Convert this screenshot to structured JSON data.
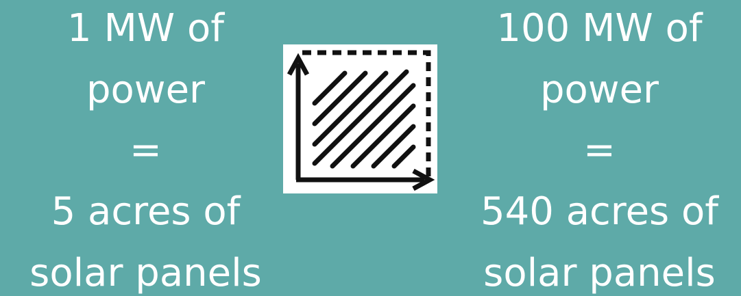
{
  "left": {
    "line1": "1 MW of",
    "line2": "power",
    "equals": "=",
    "line4": "5 acres of",
    "line5": "solar panels"
  },
  "right": {
    "line1": "100 MW of",
    "line2": "power",
    "equals": "=",
    "line4": "540 acres of",
    "line5": "solar panels"
  },
  "icon": {
    "name": "area-icon"
  },
  "colors": {
    "background": "#5eaaa8",
    "text": "#ffffff",
    "icon_background": "#ffffff",
    "icon_stroke": "#111111"
  }
}
